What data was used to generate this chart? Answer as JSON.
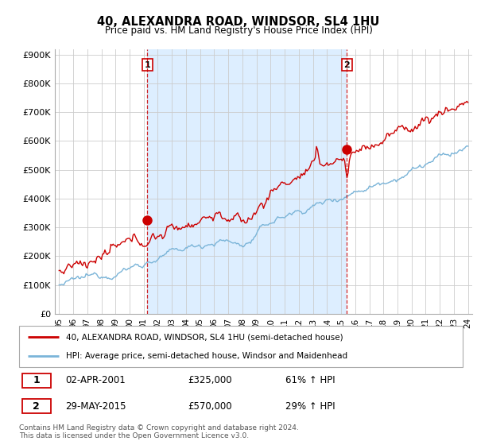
{
  "title": "40, ALEXANDRA ROAD, WINDSOR, SL4 1HU",
  "subtitle": "Price paid vs. HM Land Registry's House Price Index (HPI)",
  "ylim": [
    0,
    900000
  ],
  "yticks": [
    0,
    100000,
    200000,
    300000,
    400000,
    500000,
    600000,
    700000,
    800000,
    900000
  ],
  "ytick_labels": [
    "£0",
    "£100K",
    "£200K",
    "£300K",
    "£400K",
    "£500K",
    "£600K",
    "£700K",
    "£800K",
    "£900K"
  ],
  "hpi_color": "#7ab4d8",
  "price_color": "#cc0000",
  "vline_color": "#cc0000",
  "shade_color": "#ddeeff",
  "marker1_price": 325000,
  "marker2_price": 570000,
  "sale1_year": 2001.25,
  "sale2_year": 2015.42,
  "sale1_label": "1",
  "sale2_label": "2",
  "start_year": 1995,
  "end_year": 2024,
  "legend_line1": "40, ALEXANDRA ROAD, WINDSOR, SL4 1HU (semi-detached house)",
  "legend_line2": "HPI: Average price, semi-detached house, Windsor and Maidenhead",
  "table_row1": [
    "1",
    "02-APR-2001",
    "£325,000",
    "61% ↑ HPI"
  ],
  "table_row2": [
    "2",
    "29-MAY-2015",
    "£570,000",
    "29% ↑ HPI"
  ],
  "footnote": "Contains HM Land Registry data © Crown copyright and database right 2024.\nThis data is licensed under the Open Government Licence v3.0.",
  "background_color": "#ffffff",
  "grid_color": "#cccccc"
}
